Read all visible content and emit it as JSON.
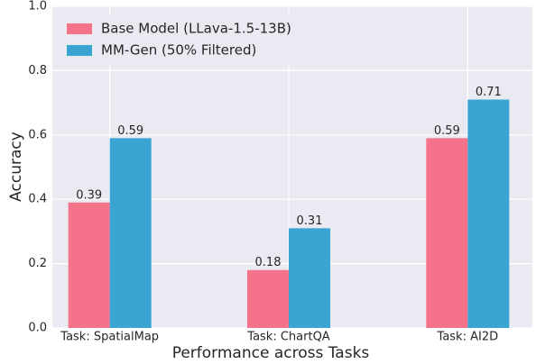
{
  "chart_data": {
    "type": "bar",
    "xlabel": "Performance across Tasks",
    "ylabel": "Accuracy",
    "categories": [
      "Task: SpatialMap",
      "Task: ChartQA",
      "Task: AI2D"
    ],
    "series": [
      {
        "name": "Base Model (LLava-1.5-13B)",
        "color": "#f5738a",
        "values": [
          0.39,
          0.18,
          0.59
        ]
      },
      {
        "name": "MM-Gen (50% Filtered)",
        "color": "#3aa5d2",
        "values": [
          0.59,
          0.31,
          0.71
        ]
      }
    ],
    "ylim": [
      0,
      1
    ],
    "yticks": [
      {
        "value": 0,
        "label": "0.0"
      },
      0.2,
      0.4,
      0.6,
      0.8,
      {
        "value": 1,
        "label": "1.0"
      }
    ],
    "grid": true,
    "legend": "upper left"
  }
}
